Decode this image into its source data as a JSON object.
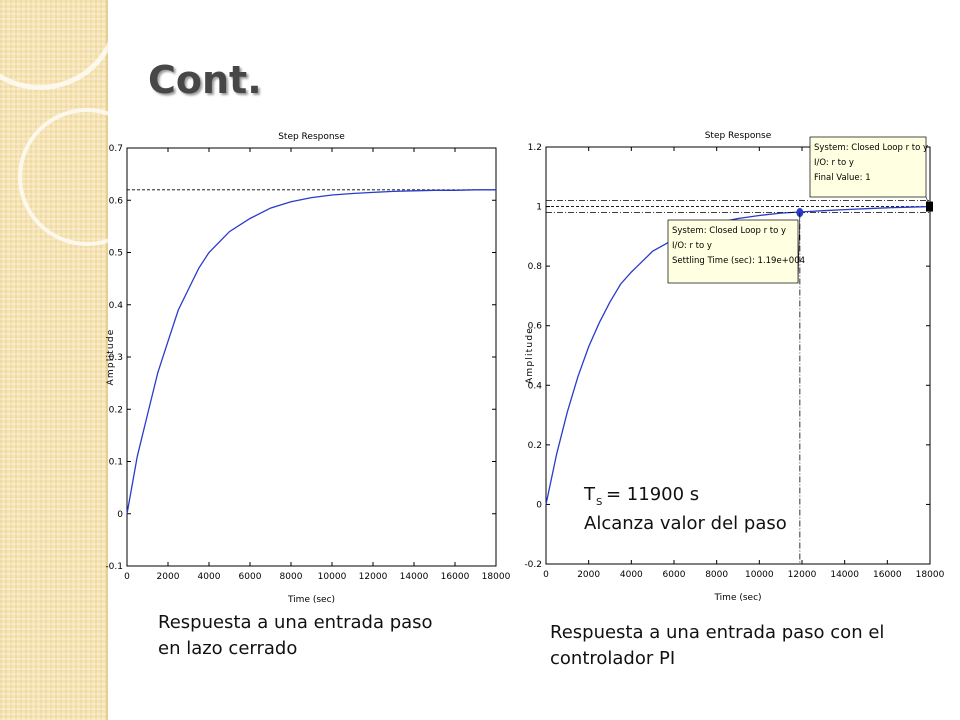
{
  "slide": {
    "title": "Cont.",
    "caption_left": [
      "Respuesta a una entrada paso",
      "en lazo cerrado"
    ],
    "caption_right": [
      "Respuesta a una entrada paso con el",
      "controlador PI"
    ],
    "colors": {
      "line": "#2a3bcc",
      "sidebar": "#f6e4b3",
      "title": "#474747"
    }
  },
  "chart_data": [
    {
      "type": "line",
      "title": "Step Response",
      "xlabel": "Time (sec)",
      "ylabel": "Amplitude",
      "xlim": [
        0,
        18000
      ],
      "ylim": [
        -0.1,
        0.7
      ],
      "xticks": [
        0,
        2000,
        4000,
        6000,
        8000,
        10000,
        12000,
        14000,
        16000,
        18000
      ],
      "xticklabels": [
        "0",
        "2000",
        "4000",
        "6000",
        "8000",
        "10000",
        "12000",
        "14000",
        "16000",
        "18000"
      ],
      "yticks": [
        -0.1,
        0,
        0.1,
        0.2,
        0.3,
        0.4,
        0.5,
        0.6,
        0.7
      ],
      "yticklabels": [
        "-0.1",
        "0",
        "0.1",
        "0.2",
        "0.3",
        "0.4",
        "0.5",
        "0.6",
        "0.7"
      ],
      "grid": false,
      "final_value": 0.62,
      "series": [
        {
          "x": [
            0,
            500,
            1000,
            1500,
            2000,
            2500,
            3000,
            3500,
            4000,
            5000,
            6000,
            7000,
            8000,
            9000,
            10000,
            11000,
            12000,
            13000,
            14000,
            15000,
            16000,
            17000,
            18000
          ],
          "y": [
            0,
            0.11,
            0.19,
            0.27,
            0.33,
            0.39,
            0.43,
            0.47,
            0.5,
            0.54,
            0.565,
            0.585,
            0.597,
            0.605,
            0.61,
            0.613,
            0.615,
            0.617,
            0.618,
            0.619,
            0.619,
            0.62,
            0.62
          ]
        }
      ]
    },
    {
      "type": "line",
      "title": "Step Response",
      "xlabel": "Time (sec)",
      "ylabel": "Amplitude",
      "xlim": [
        0,
        18000
      ],
      "ylim": [
        -0.2,
        1.2
      ],
      "xticks": [
        0,
        2000,
        4000,
        6000,
        8000,
        10000,
        12000,
        14000,
        16000,
        18000
      ],
      "xticklabels": [
        "0",
        "2000",
        "4000",
        "6000",
        "8000",
        "10000",
        "12000",
        "14000",
        "16000",
        "18000"
      ],
      "yticks": [
        -0.2,
        0,
        0.2,
        0.4,
        0.6,
        0.8,
        1,
        1.2
      ],
      "yticklabels": [
        "-0.2",
        "0",
        "0.2",
        "0.4",
        "0.6",
        "0.8",
        "1",
        "1.2"
      ],
      "grid": false,
      "final_value": 1,
      "settling_time": 11900,
      "series": [
        {
          "x": [
            0,
            500,
            1000,
            1500,
            2000,
            2500,
            3000,
            3500,
            4000,
            5000,
            6000,
            7000,
            8000,
            9000,
            10000,
            11000,
            12000,
            13000,
            14000,
            15000,
            16000,
            17000,
            18000
          ],
          "y": [
            0,
            0.17,
            0.31,
            0.43,
            0.53,
            0.61,
            0.68,
            0.74,
            0.78,
            0.85,
            0.89,
            0.92,
            0.945,
            0.96,
            0.97,
            0.978,
            0.982,
            0.986,
            0.99,
            0.993,
            0.996,
            0.998,
            1.0
          ]
        }
      ],
      "datatips": [
        {
          "lines": [
            "System: Closed Loop r to y",
            "I/O: r to y",
            "Final Value: 1"
          ]
        },
        {
          "lines": [
            "System: Closed Loop r to y",
            "I/O: r to y",
            "Settling Time (sec): 1.19e+004"
          ]
        }
      ],
      "annotation": {
        "ts_label": "T",
        "ts_sub": "S",
        "ts_value": " = 11900 s",
        "line2": "Alcanza valor del paso"
      }
    }
  ]
}
